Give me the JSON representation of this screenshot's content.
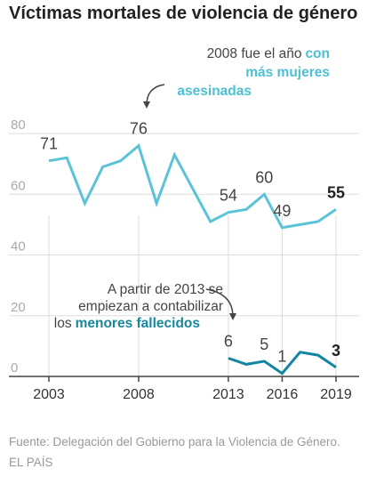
{
  "title": "Víctimas mortales de violencia de género",
  "source": "Fuente: Delegación del Gobierno para la Violencia de Género.",
  "credit": "EL PAÍS",
  "colors": {
    "women_series": "#5bc3d6",
    "minors_series": "#1186a0",
    "women_highlight": "#4ec0d4",
    "minors_highlight": "#16879f",
    "grid": "#dddddd",
    "axis": "#444444",
    "text": "#444444",
    "muted": "#aaaaaa"
  },
  "annotations": {
    "women": {
      "line1": "2008 fue el año",
      "highlight1": "con",
      "line2": "más mujeres",
      "line3": "asesinadas"
    },
    "minors": {
      "line1": "A partir de 2013 se",
      "line2": "empiezan a contabilizar",
      "plain3": "los",
      "highlight3": "menores fallecidos"
    }
  },
  "chart_data": {
    "type": "line",
    "title": "Víctimas mortales de violencia de género",
    "xlabel": "",
    "ylabel": "",
    "x": [
      2003,
      2004,
      2005,
      2006,
      2007,
      2008,
      2009,
      2010,
      2011,
      2012,
      2013,
      2014,
      2015,
      2016,
      2017,
      2018,
      2019
    ],
    "xlim": [
      2003,
      2019
    ],
    "ylim": [
      0,
      80
    ],
    "yticks": [
      0,
      20,
      40,
      60,
      80
    ],
    "xticks": [
      2003,
      2008,
      2013,
      2016,
      2019
    ],
    "grid": true,
    "series": [
      {
        "id": "women",
        "values": [
          71,
          72,
          57,
          69,
          71,
          76,
          57,
          73,
          62,
          51,
          54,
          55,
          60,
          49,
          50,
          51,
          55
        ]
      },
      {
        "id": "minors",
        "values": [
          null,
          null,
          null,
          null,
          null,
          null,
          null,
          null,
          null,
          null,
          6,
          4,
          5,
          1,
          8,
          7,
          3
        ]
      }
    ],
    "point_labels": [
      {
        "series": "women",
        "x": 2003,
        "text": "71",
        "bold": false
      },
      {
        "series": "women",
        "x": 2008,
        "text": "76",
        "bold": false
      },
      {
        "series": "women",
        "x": 2013,
        "text": "54",
        "bold": false
      },
      {
        "series": "women",
        "x": 2015,
        "text": "60",
        "bold": false
      },
      {
        "series": "women",
        "x": 2016,
        "text": "49",
        "bold": false
      },
      {
        "series": "women",
        "x": 2019,
        "text": "55",
        "bold": true
      },
      {
        "series": "minors",
        "x": 2013,
        "text": "6",
        "bold": false
      },
      {
        "series": "minors",
        "x": 2015,
        "text": "5",
        "bold": false
      },
      {
        "series": "minors",
        "x": 2016,
        "text": "1",
        "bold": false
      },
      {
        "series": "minors",
        "x": 2019,
        "text": "3",
        "bold": true
      }
    ]
  }
}
